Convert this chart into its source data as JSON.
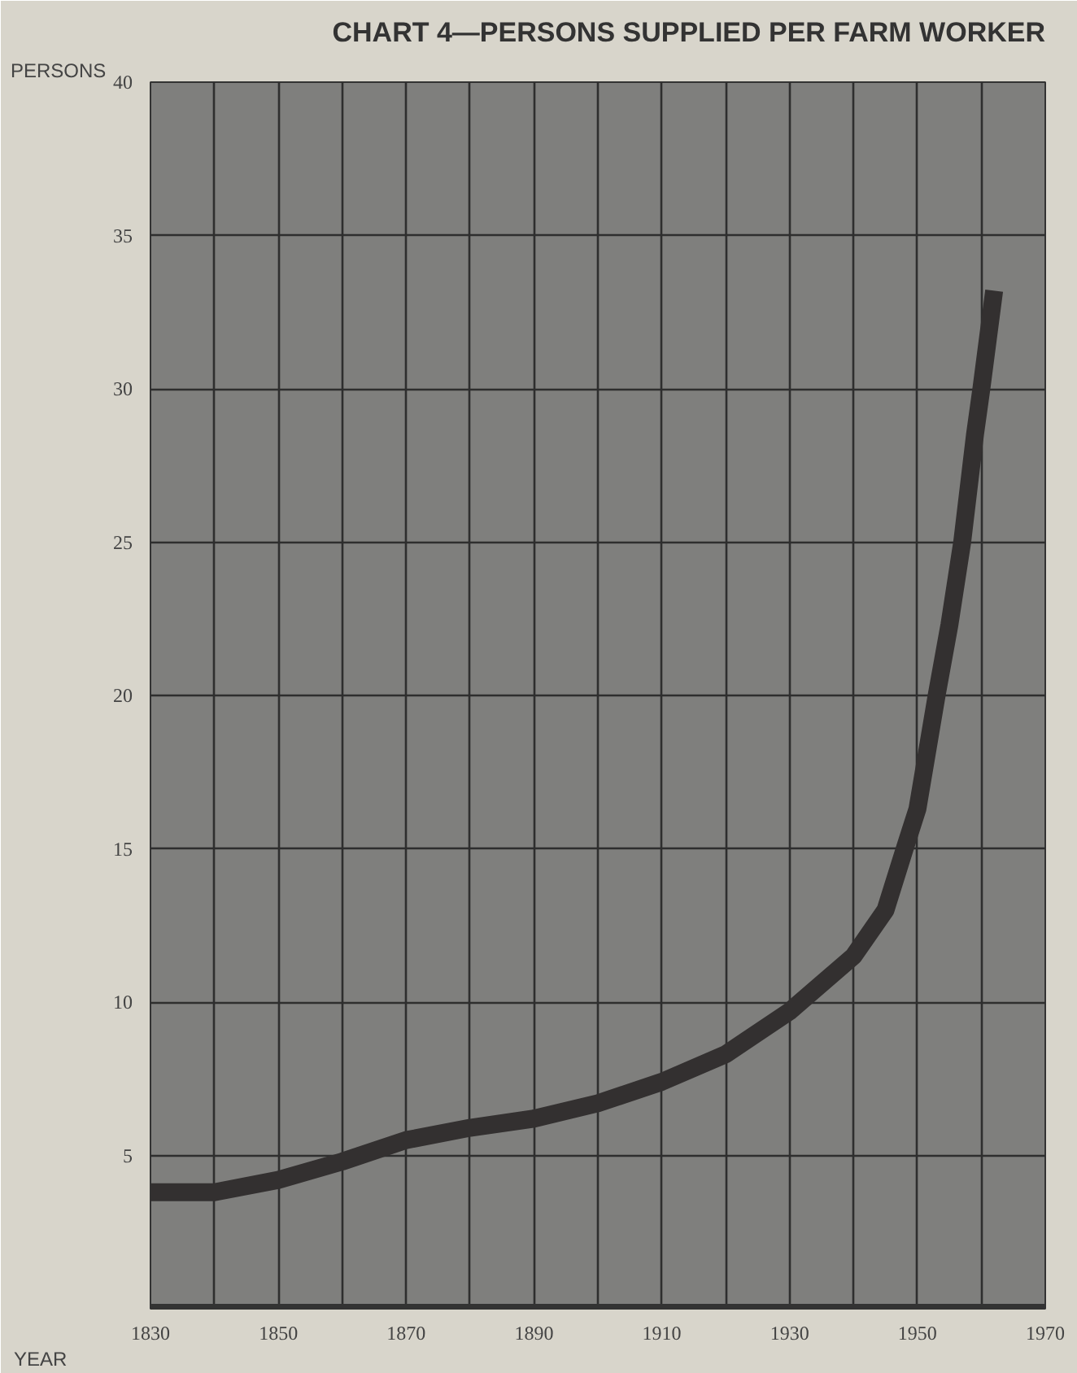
{
  "chart_data": {
    "type": "line",
    "title": "CHART 4—PERSONS SUPPLIED PER FARM WORKER",
    "ylabel": "PERSONS",
    "xlabel": "YEAR",
    "x": [
      1830,
      1840,
      1850,
      1860,
      1870,
      1880,
      1890,
      1900,
      1910,
      1920,
      1930,
      1940,
      1945,
      1948,
      1950,
      1953,
      1955,
      1957,
      1959,
      1960,
      1961,
      1962
    ],
    "series": [
      {
        "color": "#333030",
        "values": [
          3.8,
          3.8,
          4.2,
          4.8,
          5.5,
          5.9,
          6.2,
          6.7,
          7.4,
          8.3,
          9.7,
          11.5,
          13.0,
          15.0,
          16.3,
          20.0,
          22.3,
          25.0,
          28.5,
          30.0,
          31.6,
          33.2
        ]
      }
    ],
    "xlim": [
      1830,
      1970
    ],
    "ylim": [
      0,
      40
    ],
    "xticks": [
      1830,
      {
        "value": 1840,
        "label": null
      },
      1850,
      {
        "value": 1860,
        "label": null
      },
      1870,
      {
        "value": 1880,
        "label": null
      },
      1890,
      {
        "value": 1900,
        "label": null
      },
      1910,
      {
        "value": 1920,
        "label": null
      },
      1930,
      {
        "value": 1940,
        "label": null
      },
      1950,
      {
        "value": 1960,
        "label": null
      },
      1970
    ],
    "yticks": [
      {
        "value": 0,
        "label": null
      },
      5,
      10,
      15,
      20,
      25,
      30,
      35,
      40
    ],
    "grid": true,
    "marker": "none",
    "line_style": "solid"
  }
}
